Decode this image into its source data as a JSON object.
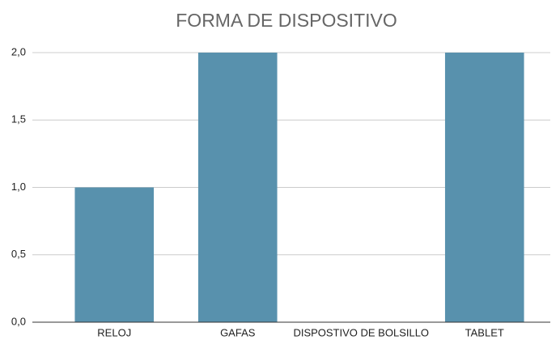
{
  "chart_data": {
    "type": "bar",
    "title": "FORMA DE DISPOSITIVO",
    "categories": [
      "RELOJ",
      "GAFAS",
      "DISPOSTIVO DE BOLSILLO",
      "TABLET"
    ],
    "values": [
      1,
      2,
      0,
      2
    ],
    "color": "#5891ad",
    "ylim": [
      0,
      2
    ],
    "yticks": [
      {
        "value": 0,
        "label": "0,0"
      },
      {
        "value": 0.5,
        "label": "0,5"
      },
      {
        "value": 1,
        "label": "1,0"
      },
      {
        "value": 1.5,
        "label": "1,5"
      },
      {
        "value": 2,
        "label": "2,0"
      }
    ],
    "grid": true
  }
}
